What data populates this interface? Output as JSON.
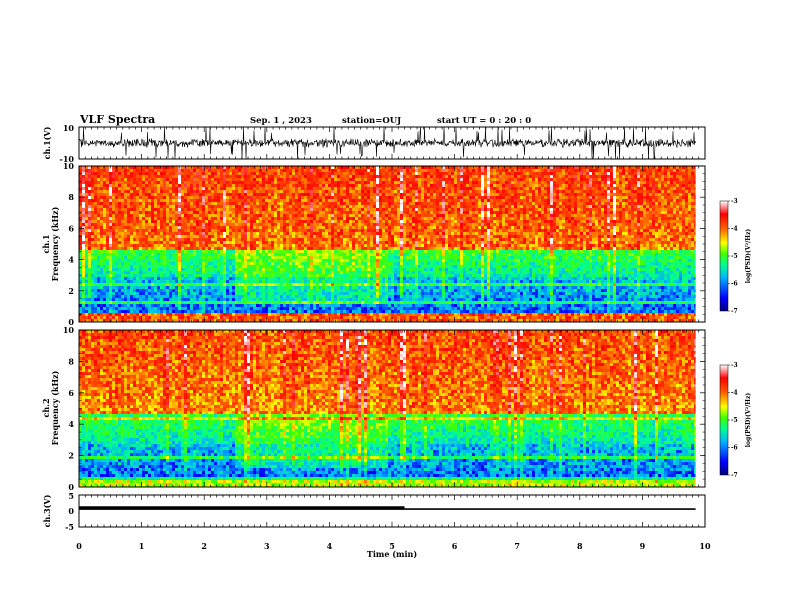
{
  "header": {
    "title": "VLF Spectra",
    "date": "Sep. 1 , 2023",
    "station": "station=OUJ",
    "start": "start UT =  0 : 20 : 0"
  },
  "chart_data": [
    {
      "type": "line",
      "ylabel": "ch.1(V)",
      "ylim": [
        -10,
        10
      ],
      "yticks": [
        "10",
        "-10"
      ],
      "xlim": [
        0,
        10
      ]
    },
    {
      "type": "heatmap",
      "ylabel_top": "ch.1",
      "ylabel": "Frequency (kHz)",
      "ylim": [
        0,
        10
      ],
      "yticks": [
        "0",
        "2",
        "4",
        "6",
        "8",
        "10"
      ],
      "xlim": [
        0,
        10
      ],
      "colorbar": {
        "label": "log(PSD)(V²/Hz)",
        "range": [
          -7,
          -3
        ],
        "ticks": [
          "-3",
          "-4",
          "-5",
          "-6",
          "-7"
        ]
      }
    },
    {
      "type": "heatmap",
      "ylabel_top": "ch.2",
      "ylabel": "Frequency (kHz)",
      "ylim": [
        0,
        10
      ],
      "yticks": [
        "0",
        "2",
        "4",
        "6",
        "8",
        "10"
      ],
      "xlim": [
        0,
        10
      ],
      "colorbar": {
        "label": "log(PSD)(V²/Hz)",
        "range": [
          -7,
          -3
        ],
        "ticks": [
          "-3",
          "-4",
          "-5",
          "-6",
          "-7"
        ]
      }
    },
    {
      "type": "line",
      "ylabel": "ch.3(V)",
      "ylim": [
        -5,
        5
      ],
      "yticks": [
        "5",
        "0",
        "-5"
      ],
      "xlim": [
        0,
        10
      ],
      "series": [
        {
          "x": [
            0,
            5.2
          ],
          "y": [
            1.1,
            1.1
          ]
        },
        {
          "x": [
            0,
            9.85
          ],
          "y": [
            0.6,
            0.6
          ]
        }
      ]
    }
  ],
  "xaxis": {
    "label": "Time (min)",
    "ticks": [
      "0",
      "1",
      "2",
      "3",
      "4",
      "5",
      "6",
      "7",
      "8",
      "9",
      "10"
    ],
    "data_end": 9.85
  },
  "colors": {
    "colormap": [
      "#000080",
      "#0000ff",
      "#00b0ff",
      "#00ff90",
      "#40ff00",
      "#ffff00",
      "#ff6000",
      "#ff0000",
      "#ffffff"
    ],
    "trace": "#000000"
  }
}
